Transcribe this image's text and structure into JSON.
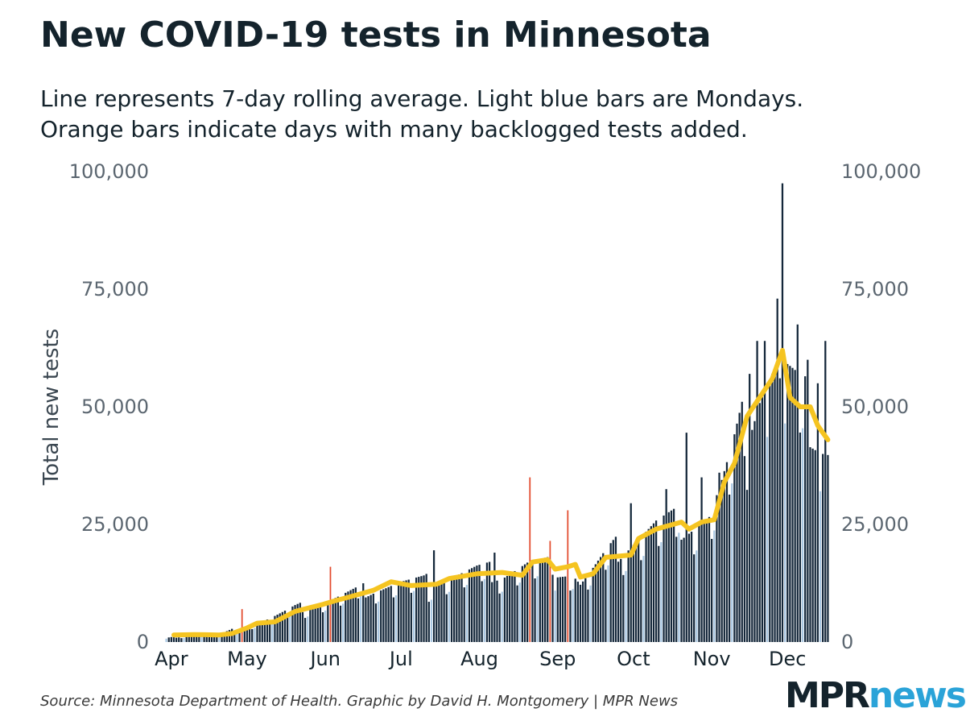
{
  "header": {
    "title": "New COVID-19 tests in Minnesota",
    "subtitle_line1": "Line represents 7-day rolling average. Light blue bars are Mondays.",
    "subtitle_line2": "Orange bars indicate days with many backlogged tests added."
  },
  "footer": {
    "source": "Source: Minnesota Department of Health. Graphic by David H. Montgomery | MPR News",
    "logo_part1": "MPR",
    "logo_part2": "news"
  },
  "colors": {
    "bar": "#14273a",
    "monday": "#a9c7e2",
    "backlog": "#e2492b",
    "avg_line": "#f5c421",
    "text": "#14232c",
    "logo_accent": "#2aa3d8"
  },
  "chart_data": {
    "type": "bar",
    "ylabel": "Total new tests",
    "ylim": [
      0,
      100000
    ],
    "yticks": [
      "0",
      "25,000",
      "50,000",
      "75,000",
      "100,000"
    ],
    "y_axis_right": true,
    "xlabel": "",
    "x_start_date": "2020-03-30",
    "x_end_date": "2020-12-17",
    "months": [
      {
        "label": "Apr",
        "date": "2020-04-01"
      },
      {
        "label": "May",
        "date": "2020-05-01"
      },
      {
        "label": "Jun",
        "date": "2020-06-01"
      },
      {
        "label": "Jul",
        "date": "2020-07-01"
      },
      {
        "label": "Aug",
        "date": "2020-08-01"
      },
      {
        "label": "Sep",
        "date": "2020-09-01"
      },
      {
        "label": "Oct",
        "date": "2020-10-01"
      },
      {
        "label": "Nov",
        "date": "2020-11-01"
      },
      {
        "label": "Dec",
        "date": "2020-12-01"
      }
    ],
    "backlog_days": [
      {
        "date": "2020-04-29",
        "value": 7000
      },
      {
        "date": "2020-06-03",
        "value": 16000
      },
      {
        "date": "2020-08-21",
        "value": 35000
      },
      {
        "date": "2020-08-29",
        "value": 21500
      },
      {
        "date": "2020-09-05",
        "value": 28000
      }
    ],
    "daily_key_points": [
      [
        "2020-03-30",
        800
      ],
      [
        "2020-04-05",
        1200
      ],
      [
        "2020-04-10",
        1500
      ],
      [
        "2020-04-15",
        1600
      ],
      [
        "2020-04-20",
        1500
      ],
      [
        "2020-04-25",
        2500
      ],
      [
        "2020-05-01",
        3500
      ],
      [
        "2020-05-10",
        5000
      ],
      [
        "2020-05-20",
        7000
      ],
      [
        "2020-05-31",
        8500
      ],
      [
        "2020-06-10",
        10000
      ],
      [
        "2020-06-20",
        11500
      ],
      [
        "2020-06-30",
        12500
      ],
      [
        "2020-07-10",
        12500
      ],
      [
        "2020-07-20",
        14000
      ],
      [
        "2020-07-31",
        15000
      ],
      [
        "2020-08-10",
        14800
      ],
      [
        "2020-08-20",
        16500
      ],
      [
        "2020-08-31",
        16000
      ],
      [
        "2020-09-07",
        15000
      ],
      [
        "2020-09-10",
        12500
      ],
      [
        "2020-09-20",
        18000
      ],
      [
        "2020-09-30",
        22000
      ],
      [
        "2020-10-10",
        25000
      ],
      [
        "2020-10-20",
        25500
      ],
      [
        "2020-10-31",
        27000
      ],
      [
        "2020-11-05",
        33000
      ],
      [
        "2020-11-10",
        40000
      ],
      [
        "2020-11-15",
        48000
      ],
      [
        "2020-11-20",
        55000
      ],
      [
        "2020-11-25",
        58000
      ],
      [
        "2020-11-28",
        55000
      ],
      [
        "2020-12-01",
        56000
      ],
      [
        "2020-12-05",
        52000
      ],
      [
        "2020-12-10",
        48000
      ],
      [
        "2020-12-14",
        44000
      ],
      [
        "2020-12-17",
        42000
      ]
    ],
    "daily_spikes": [
      [
        "2020-07-14",
        19500
      ],
      [
        "2020-08-07",
        19000
      ],
      [
        "2020-09-30",
        29500
      ],
      [
        "2020-10-14",
        32500
      ],
      [
        "2020-10-22",
        44500
      ],
      [
        "2020-10-28",
        35000
      ],
      [
        "2020-11-04",
        36000
      ],
      [
        "2020-11-16",
        57000
      ],
      [
        "2020-11-19",
        64000
      ],
      [
        "2020-11-22",
        64000
      ],
      [
        "2020-11-27",
        73000
      ],
      [
        "2020-11-29",
        97500
      ],
      [
        "2020-12-05",
        67500
      ],
      [
        "2020-12-09",
        60000
      ],
      [
        "2020-12-13",
        55000
      ],
      [
        "2020-12-16",
        64000
      ]
    ],
    "rolling_average": [
      [
        "2020-04-02",
        1500
      ],
      [
        "2020-04-10",
        1600
      ],
      [
        "2020-04-20",
        1500
      ],
      [
        "2020-04-25",
        1800
      ],
      [
        "2020-05-01",
        3000
      ],
      [
        "2020-05-05",
        4000
      ],
      [
        "2020-05-12",
        4300
      ],
      [
        "2020-05-20",
        6500
      ],
      [
        "2020-05-31",
        8000
      ],
      [
        "2020-06-05",
        8800
      ],
      [
        "2020-06-10",
        9500
      ],
      [
        "2020-06-20",
        11000
      ],
      [
        "2020-06-27",
        12800
      ],
      [
        "2020-07-05",
        12000
      ],
      [
        "2020-07-15",
        12300
      ],
      [
        "2020-07-20",
        13500
      ],
      [
        "2020-07-31",
        14500
      ],
      [
        "2020-08-10",
        14800
      ],
      [
        "2020-08-18",
        14200
      ],
      [
        "2020-08-22",
        17000
      ],
      [
        "2020-08-28",
        17500
      ],
      [
        "2020-08-31",
        15500
      ],
      [
        "2020-09-05",
        16000
      ],
      [
        "2020-09-08",
        16500
      ],
      [
        "2020-09-10",
        13800
      ],
      [
        "2020-09-15",
        14500
      ],
      [
        "2020-09-20",
        18000
      ],
      [
        "2020-09-30",
        18500
      ],
      [
        "2020-10-03",
        22000
      ],
      [
        "2020-10-10",
        24000
      ],
      [
        "2020-10-20",
        25500
      ],
      [
        "2020-10-23",
        24000
      ],
      [
        "2020-10-28",
        25500
      ],
      [
        "2020-11-02",
        26000
      ],
      [
        "2020-11-06",
        34000
      ],
      [
        "2020-11-10",
        38000
      ],
      [
        "2020-11-15",
        48000
      ],
      [
        "2020-11-20",
        52000
      ],
      [
        "2020-11-25",
        56000
      ],
      [
        "2020-11-29",
        62000
      ],
      [
        "2020-12-02",
        52000
      ],
      [
        "2020-12-06",
        50000
      ],
      [
        "2020-12-10",
        50000
      ],
      [
        "2020-12-13",
        46000
      ],
      [
        "2020-12-17",
        43000
      ]
    ]
  }
}
